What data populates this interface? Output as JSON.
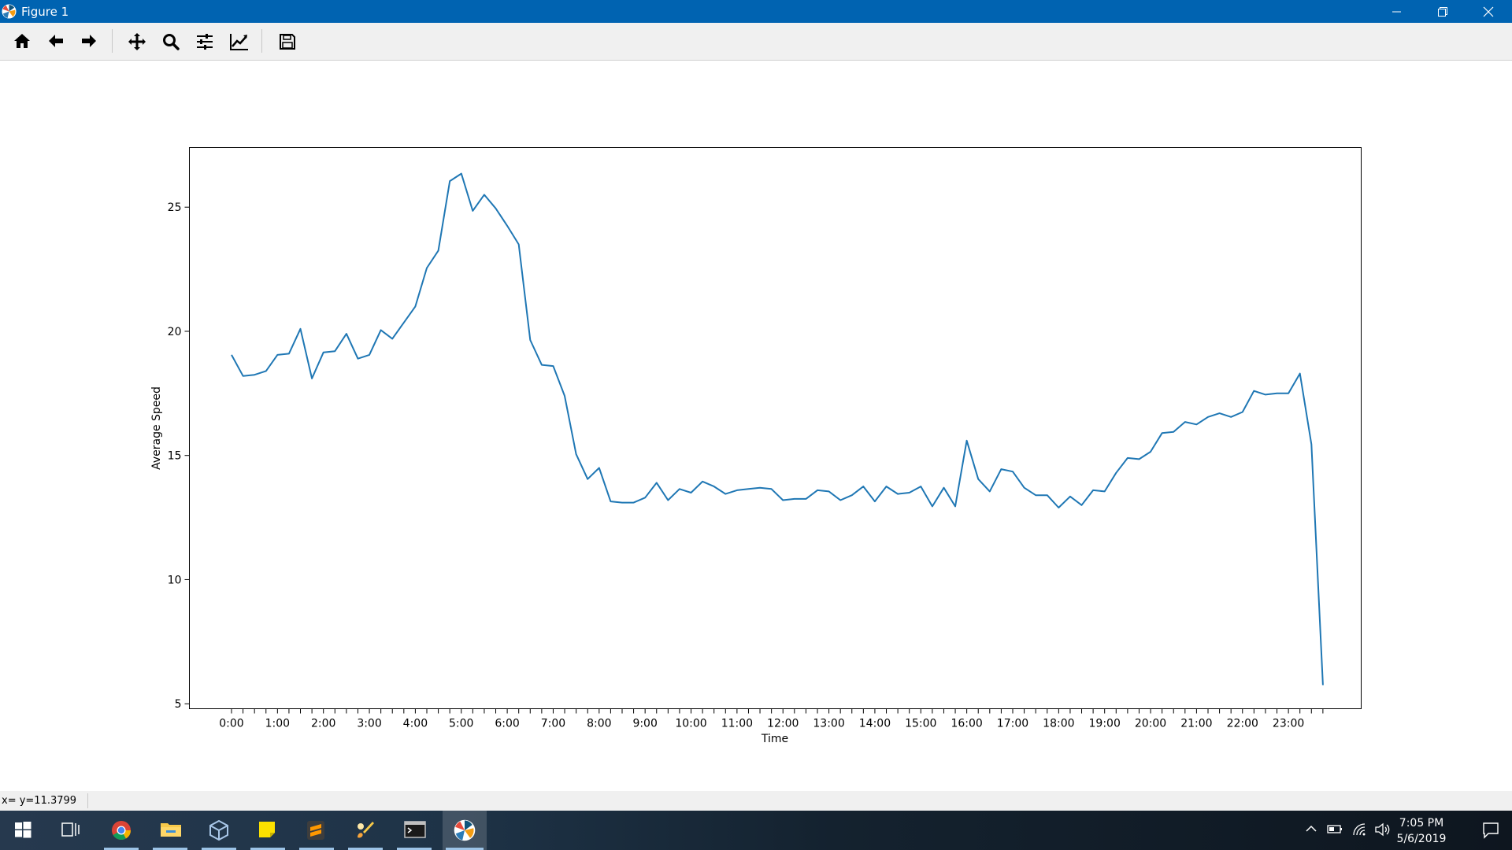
{
  "window": {
    "title": "Figure 1"
  },
  "toolbar": {
    "tools": [
      {
        "name": "home-icon"
      },
      {
        "name": "back-arrow-icon"
      },
      {
        "name": "forward-arrow-icon"
      },
      {
        "name": "pan-icon"
      },
      {
        "name": "zoom-icon"
      },
      {
        "name": "configure-subplots-icon"
      },
      {
        "name": "edit-axis-icon"
      },
      {
        "name": "save-icon"
      }
    ]
  },
  "status": {
    "coords": "x= y=11.3799"
  },
  "taskbar": {
    "apps": [
      "windows-start-icon",
      "task-view-icon",
      "chrome-icon",
      "file-explorer-icon",
      "virtualbox-icon",
      "sticky-notes-icon",
      "sublime-text-icon",
      "paint-icon",
      "terminal-icon",
      "matplotlib-icon"
    ],
    "time": "7:05 PM",
    "date": "5/6/2019"
  },
  "colors": {
    "titlebar": "#0063b1",
    "line": "#1f77b4"
  },
  "chart_data": {
    "type": "line",
    "title": "",
    "xlabel": "Time",
    "ylabel": "Average Speed",
    "x_tick_labels": [
      "0:00",
      "1:00",
      "2:00",
      "3:00",
      "4:00",
      "5:00",
      "6:00",
      "7:00",
      "8:00",
      "9:00",
      "10:00",
      "11:00",
      "12:00",
      "13:00",
      "14:00",
      "15:00",
      "16:00",
      "17:00",
      "18:00",
      "19:00",
      "20:00",
      "21:00",
      "22:00",
      "23:00"
    ],
    "y_ticks": [
      5,
      10,
      15,
      20,
      25
    ],
    "x_interval_minutes": 15,
    "xlim": [
      "-0:55",
      "24:35"
    ],
    "ylim": [
      4.8,
      27.4
    ],
    "grid": false,
    "series": [
      {
        "values": [
          19.05,
          18.2,
          18.25,
          18.4,
          19.05,
          19.1,
          20.1,
          18.1,
          19.15,
          19.2,
          19.9,
          18.9,
          19.05,
          20.05,
          19.7,
          20.35,
          21.0,
          22.55,
          23.25,
          26.05,
          26.35,
          24.85,
          25.5,
          24.95,
          24.25,
          23.5,
          19.65,
          18.65,
          18.6,
          17.4,
          15.05,
          14.05,
          14.5,
          13.15,
          13.1,
          13.1,
          13.3,
          13.9,
          13.2,
          13.65,
          13.5,
          13.95,
          13.75,
          13.45,
          13.6,
          13.65,
          13.7,
          13.65,
          13.2,
          13.25,
          13.25,
          13.6,
          13.55,
          13.2,
          13.4,
          13.75,
          13.15,
          13.75,
          13.45,
          13.5,
          13.75,
          12.95,
          13.7,
          12.95,
          15.6,
          14.05,
          13.55,
          14.45,
          14.35,
          13.7,
          13.4,
          13.4,
          12.9,
          13.35,
          13.0,
          13.6,
          13.55,
          14.3,
          14.9,
          14.85,
          15.15,
          15.9,
          15.95,
          16.35,
          16.25,
          16.55,
          16.7,
          16.55,
          16.75,
          17.6,
          17.45,
          17.5,
          17.5,
          18.3,
          15.45,
          5.75
        ]
      }
    ]
  }
}
